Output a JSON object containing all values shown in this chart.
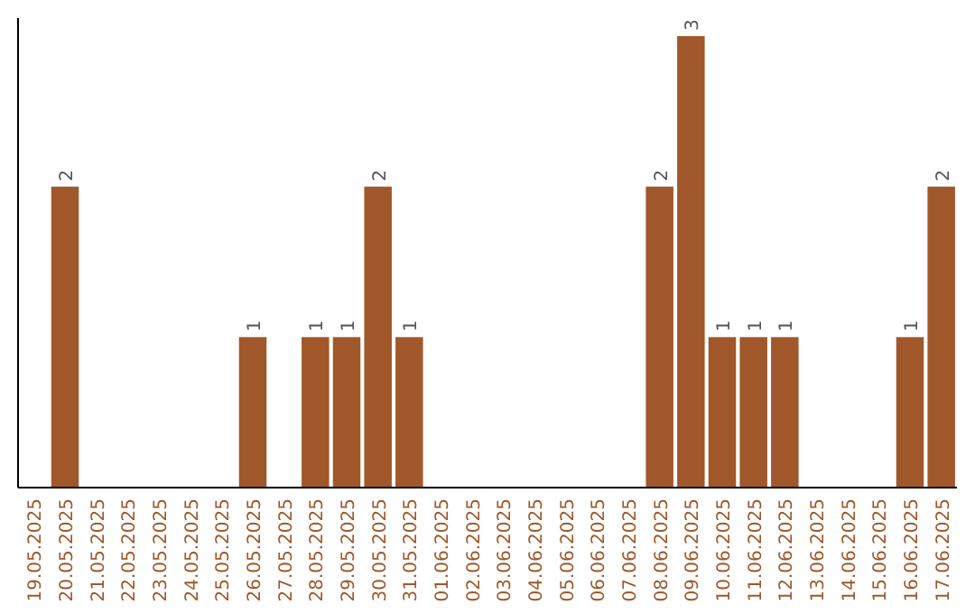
{
  "chart_data": {
    "type": "bar",
    "categories": [
      "19.05.2025",
      "20.05.2025",
      "21.05.2025",
      "22.05.2025",
      "23.05.2025",
      "24.05.2025",
      "25.05.2025",
      "26.05.2025",
      "27.05.2025",
      "28.05.2025",
      "29.05.2025",
      "30.05.2025",
      "31.05.2025",
      "01.06.2025",
      "02.06.2025",
      "03.06.2025",
      "04.06.2025",
      "05.06.2025",
      "06.06.2025",
      "07.06.2025",
      "08.06.2025",
      "09.06.2025",
      "10.06.2025",
      "11.06.2025",
      "12.06.2025",
      "13.06.2025",
      "14.06.2025",
      "15.06.2025",
      "16.06.2025",
      "17.06.2025"
    ],
    "values": [
      0,
      2,
      0,
      0,
      0,
      0,
      0,
      1,
      0,
      1,
      1,
      2,
      1,
      0,
      0,
      0,
      0,
      0,
      0,
      0,
      2,
      3,
      1,
      1,
      1,
      0,
      0,
      0,
      1,
      2
    ],
    "value_labels": [
      null,
      "2",
      null,
      null,
      null,
      null,
      null,
      "1",
      null,
      "1",
      "1",
      "2",
      "1",
      null,
      null,
      null,
      null,
      null,
      null,
      null,
      "2",
      "3",
      "1",
      "1",
      "1",
      null,
      null,
      null,
      "1",
      "2"
    ],
    "color": "#a0582a"
  }
}
